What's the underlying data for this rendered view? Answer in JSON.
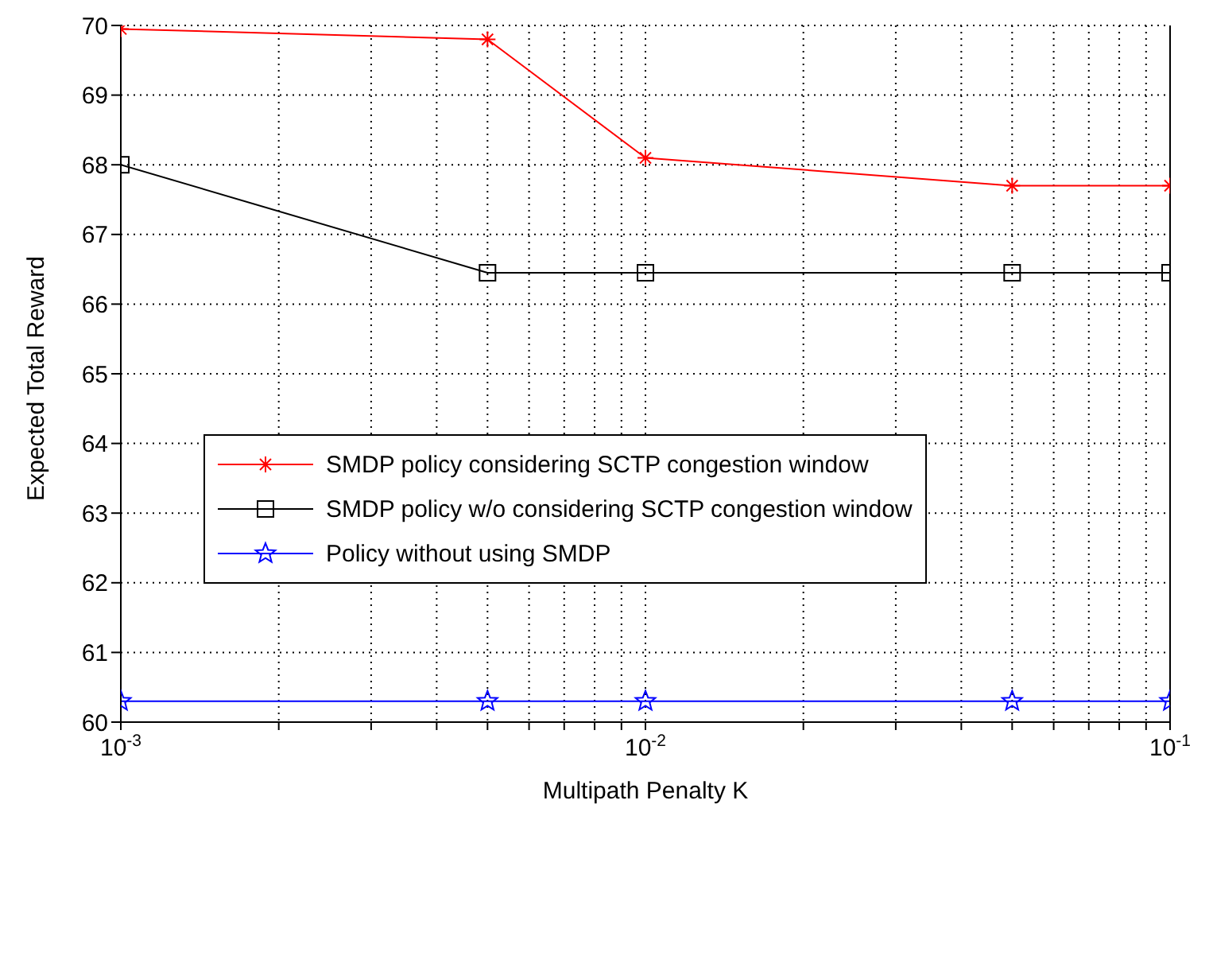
{
  "chart_data": {
    "type": "line",
    "xlabel": "Multipath Penalty K",
    "ylabel": "Expected Total Reward",
    "x": [
      0.001,
      0.005,
      0.01,
      0.05,
      0.1
    ],
    "series": [
      {
        "name": "SMDP policy considering SCTP congestion window",
        "color": "#ff0000",
        "marker": "cross",
        "values": [
          69.95,
          69.8,
          68.1,
          67.7,
          67.7
        ]
      },
      {
        "name": "SMDP policy w/o considering SCTP congestion window",
        "color": "#000000",
        "marker": "square",
        "values": [
          68.0,
          66.45,
          66.45,
          66.45,
          66.45
        ]
      },
      {
        "name": "Policy without using SMDP",
        "color": "#0000ff",
        "marker": "star",
        "values": [
          60.3,
          60.3,
          60.3,
          60.3,
          60.3
        ]
      }
    ],
    "log": "x",
    "xlim": [
      0.001,
      0.1
    ],
    "xticks": [
      {
        "value": 0.001,
        "label": "10$^{-3}$"
      },
      {
        "value": 0.002,
        "label": null
      },
      {
        "value": 0.003,
        "label": null
      },
      {
        "value": 0.004,
        "label": null
      },
      {
        "value": 0.005,
        "label": null
      },
      {
        "value": 0.006,
        "label": null
      },
      {
        "value": 0.007,
        "label": null
      },
      {
        "value": 0.008,
        "label": null
      },
      {
        "value": 0.009,
        "label": null
      },
      {
        "value": 0.01,
        "label": "10$^{-2}$"
      },
      {
        "value": 0.02,
        "label": null
      },
      {
        "value": 0.03,
        "label": null
      },
      {
        "value": 0.04,
        "label": null
      },
      {
        "value": 0.05,
        "label": null
      },
      {
        "value": 0.06,
        "label": null
      },
      {
        "value": 0.07,
        "label": null
      },
      {
        "value": 0.08,
        "label": null
      },
      {
        "value": 0.09,
        "label": null
      },
      {
        "value": 0.1,
        "label": "10$^{-1}$"
      }
    ],
    "ylim": [
      60,
      70
    ],
    "yticks": [
      60,
      61,
      62,
      63,
      64,
      65,
      66,
      67,
      68,
      69,
      70
    ],
    "grid": true,
    "legend": "left",
    "line_style": "solid"
  }
}
